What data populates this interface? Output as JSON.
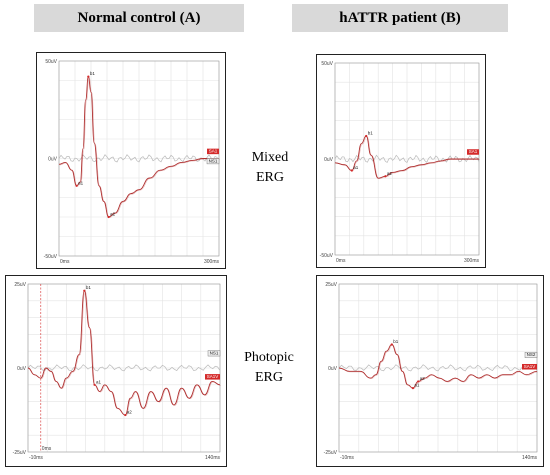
{
  "headers": {
    "a": "Normal control (A)",
    "b": "hATTR patient (B)"
  },
  "rows": {
    "mixed": [
      "Mixed",
      "ERG"
    ],
    "photopic": [
      "Photopic",
      "ERG"
    ]
  },
  "colors": {
    "trace": "#b03030",
    "baseline": "#b9b9b9",
    "grid": "#e3e3e3",
    "tag": "#d42a2a"
  },
  "chart_data": [
    {
      "type": "line",
      "panel": "normal-mixed",
      "x_ticks": [
        "0ms",
        "300ms"
      ],
      "y_ticks": [
        "50uV",
        "0uV",
        "-50uV"
      ],
      "xlim": [
        0,
        300
      ],
      "ylim": [
        -50,
        50
      ],
      "markers": [
        "a1",
        "b1",
        "a2"
      ],
      "tags": [
        {
          "text": "SA1",
          "kind": "filled"
        },
        {
          "text": "NS1",
          "kind": "outline"
        }
      ],
      "series": [
        {
          "values_x": [
            0,
            12,
            24,
            33,
            40,
            45,
            50,
            55,
            60,
            66,
            75,
            84,
            93,
            105,
            120,
            135,
            150,
            170,
            190,
            210,
            230,
            250,
            270,
            290,
            300
          ],
          "values_y": [
            -3,
            -2,
            -6,
            -14,
            -12,
            5,
            30,
            42,
            34,
            8,
            -14,
            -22,
            -30,
            -28,
            -22,
            -18,
            -16,
            -10,
            -6,
            -4,
            -2,
            -1,
            0,
            0,
            0
          ]
        }
      ]
    },
    {
      "type": "line",
      "panel": "hattr-mixed",
      "x_ticks": [
        "0ms",
        "300ms"
      ],
      "y_ticks": [
        "50uV",
        "0uV",
        "-50uV"
      ],
      "xlim": [
        0,
        300
      ],
      "ylim": [
        -50,
        50
      ],
      "markers": [
        "a1",
        "b1",
        "a2"
      ],
      "tags": [
        {
          "text": "SA1",
          "kind": "filled"
        }
      ],
      "series": [
        {
          "values_x": [
            0,
            20,
            35,
            45,
            55,
            65,
            75,
            90,
            105,
            120,
            140,
            160,
            180,
            200,
            220,
            240,
            260,
            280,
            300
          ],
          "values_y": [
            -2,
            -3,
            -6,
            -1,
            8,
            12,
            2,
            -10,
            -9,
            -7,
            -6,
            -4,
            -3,
            -2,
            -1,
            0,
            0,
            0,
            0
          ]
        }
      ]
    },
    {
      "type": "line",
      "panel": "normal-photopic",
      "x_ticks": [
        "-10ms",
        "0ms",
        "140ms"
      ],
      "y_ticks": [
        "25uV",
        "0uV",
        "-25uV"
      ],
      "xlim": [
        -10,
        140
      ],
      "ylim": [
        -25,
        25
      ],
      "markers": [
        "a1",
        "b1",
        "a2"
      ],
      "tags": [
        {
          "text": "NS1",
          "kind": "outline"
        },
        {
          "text": "SA1V",
          "kind": "filled"
        }
      ],
      "series": [
        {
          "values_x": [
            -10,
            -5,
            0,
            4,
            8,
            12,
            16,
            20,
            25,
            30,
            34,
            38,
            42,
            46,
            50,
            55,
            60,
            66,
            70,
            74,
            80,
            86,
            92,
            98,
            104,
            110,
            116,
            122,
            128,
            134,
            140
          ],
          "values_y": [
            0,
            -2,
            -3,
            0,
            -1,
            -4,
            -6,
            -3,
            -1,
            4,
            23,
            12,
            -5,
            -7,
            -5,
            -7,
            -12,
            -14,
            -9,
            -7,
            -12,
            -7,
            -10,
            -6,
            -11,
            -6,
            -9,
            -5,
            -8,
            -4,
            -5
          ]
        }
      ]
    },
    {
      "type": "line",
      "panel": "hattr-photopic",
      "x_ticks": [
        "-10ms",
        "140ms"
      ],
      "y_ticks": [
        "25uV",
        "0uV",
        "-25uV"
      ],
      "xlim": [
        -10,
        140
      ],
      "ylim": [
        -25,
        25
      ],
      "markers": [
        "a1",
        "b1",
        "a2"
      ],
      "tags": [
        {
          "text": "NS2",
          "kind": "outline"
        },
        {
          "text": "SA1V",
          "kind": "filled"
        }
      ],
      "series": [
        {
          "values_x": [
            -10,
            -2,
            6,
            14,
            18,
            22,
            26,
            30,
            34,
            38,
            42,
            46,
            50,
            55,
            60,
            66,
            72,
            78,
            84,
            90,
            96,
            102,
            108,
            114,
            120,
            126,
            132,
            140
          ],
          "values_y": [
            0,
            -1,
            -1,
            -3,
            -2,
            2,
            5,
            7,
            4,
            -1,
            -5,
            -6,
            -4,
            -3,
            -2,
            -3,
            -4,
            -3,
            -4,
            -2,
            -3,
            -2,
            -3,
            -2,
            -2,
            -1,
            -2,
            -1
          ]
        }
      ]
    }
  ]
}
